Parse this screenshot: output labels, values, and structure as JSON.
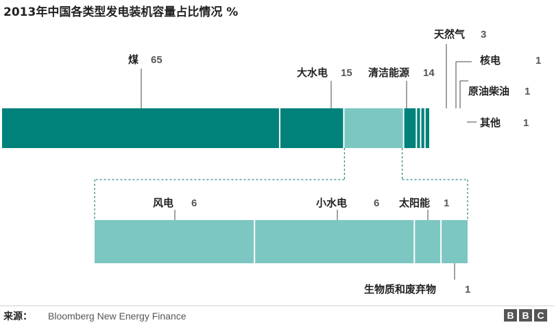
{
  "title": "2013年中国各类型发电装机容量占比情况 %",
  "source": {
    "label": "来源：",
    "text": "Bloomberg New Energy Finance"
  },
  "logo": [
    "B",
    "B",
    "C"
  ],
  "colors": {
    "dark": "#00827a",
    "light": "#7dc7c2",
    "divider": "#ffffff",
    "leader": "#444444",
    "dashed": "#2e8a86",
    "rule": "#cccccc",
    "logo": "#555555"
  },
  "chart_data": {
    "type": "bar",
    "unit": "%",
    "main": {
      "categories": [
        "煤",
        "大水电",
        "清洁能源",
        "天然气",
        "核电",
        "原油柴油",
        "其他"
      ],
      "values": [
        65,
        15,
        14,
        3,
        1,
        1,
        1
      ],
      "labels": [
        "煤",
        "大水电",
        "清洁能源",
        "天然气",
        "核电",
        "原油柴油",
        "其他"
      ],
      "value_labels": [
        "65",
        "15",
        "14",
        "3",
        "1",
        "1",
        "1"
      ]
    },
    "breakdown": {
      "parent": "清洁能源",
      "categories": [
        "风电",
        "小水电",
        "太阳能",
        "生物质和废弃物"
      ],
      "values": [
        6,
        6,
        1,
        1
      ],
      "labels": [
        "风电",
        "小水电",
        "太阳能",
        "生物质和废弃物"
      ],
      "value_labels": [
        "6",
        "6",
        "1",
        "1"
      ]
    }
  }
}
